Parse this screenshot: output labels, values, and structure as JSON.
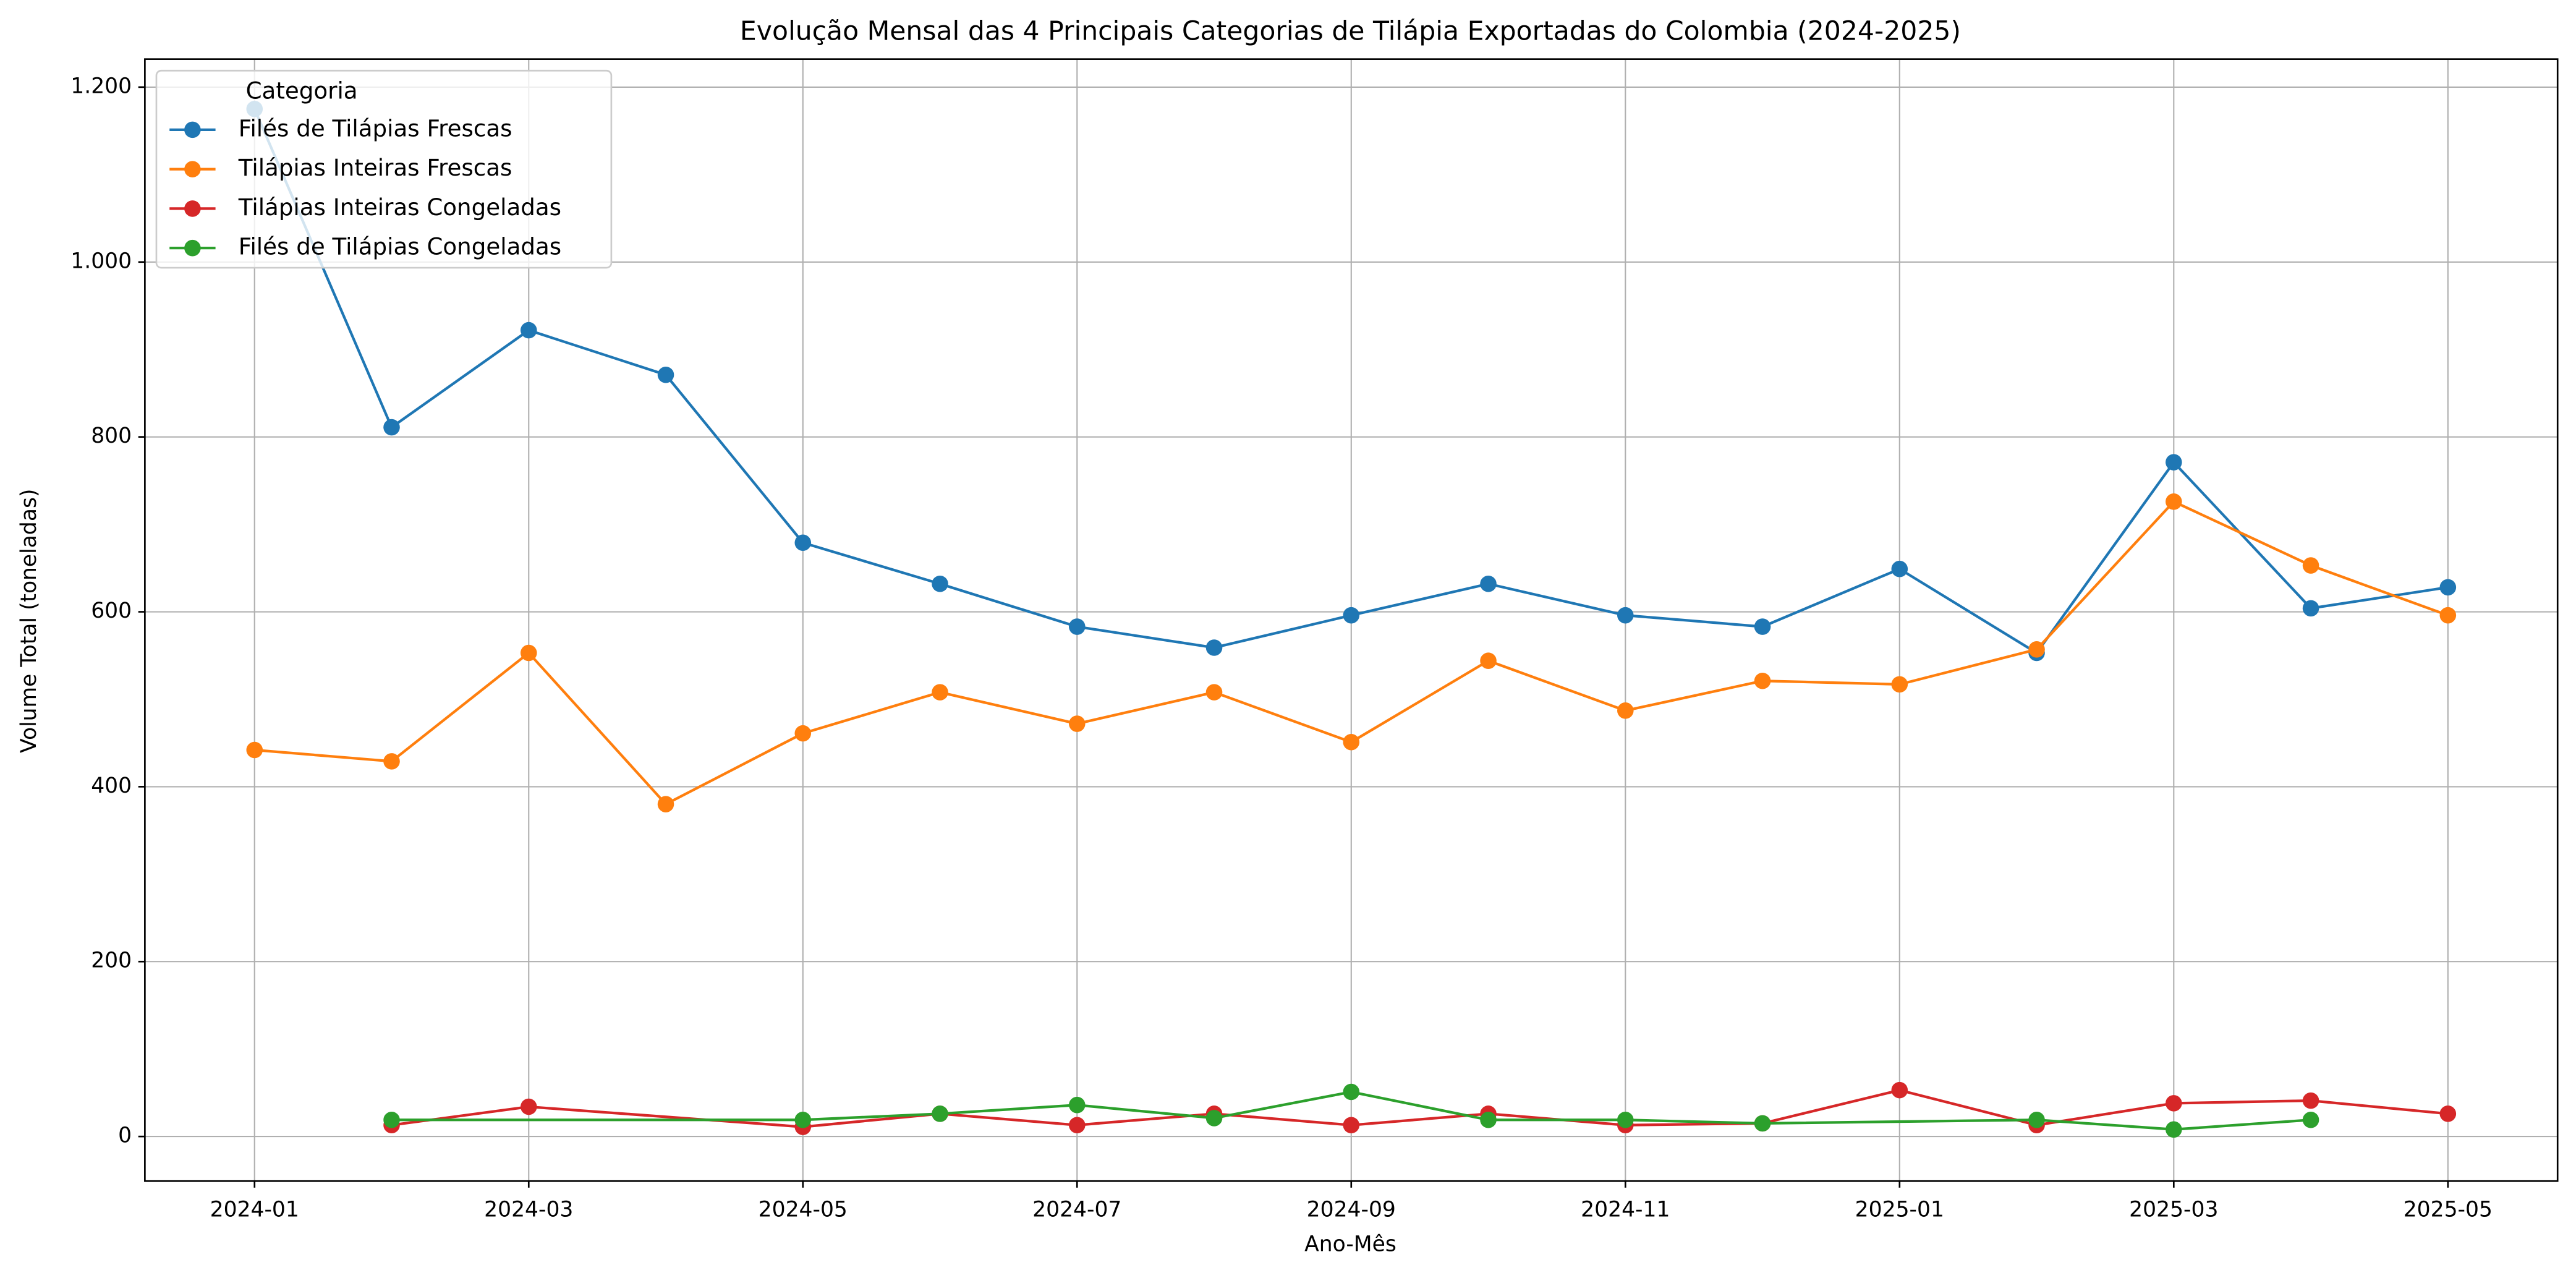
{
  "chart_data": {
    "type": "line",
    "title": "Evolução Mensal das 4 Principais Categorias de Tilápia Exportadas do Colombia (2024-2025)",
    "x_label": "Ano-Mês",
    "y_label": "Volume Total (toneladas)",
    "legend_title": "Categoria",
    "legend": "upper left",
    "grid": true,
    "xticks": [
      "2024-01",
      "2024-03",
      "2024-05",
      "2024-07",
      "2024-09",
      "2024-11",
      "2025-01",
      "2025-03",
      "2025-05"
    ],
    "ylim": [
      -51,
      1232
    ],
    "yticks": [
      0,
      200,
      400,
      600,
      800,
      {
        "value": 1000,
        "label": "1.000"
      },
      {
        "value": 1200,
        "label": "1.200"
      }
    ],
    "series": [
      {
        "name": "Filés de Tilápias Frescas",
        "color": "#1f77b4",
        "x": [
          "2024-01",
          "2024-02",
          "2024-03",
          "2024-04",
          "2024-05",
          "2024-06",
          "2024-07",
          "2024-08",
          "2024-09",
          "2024-10",
          "2024-11",
          "2024-12",
          "2025-01",
          "2025-02",
          "2025-03",
          "2025-04",
          "2025-05"
        ],
        "values": [
          1175,
          811,
          922,
          871,
          679,
          632,
          583,
          559,
          596,
          632,
          596,
          583,
          649,
          553,
          771,
          604,
          628
        ]
      },
      {
        "name": "Tilápias Inteiras Frescas",
        "color": "#ff7f0e",
        "x": [
          "2024-01",
          "2024-02",
          "2024-03",
          "2024-04",
          "2024-05",
          "2024-06",
          "2024-07",
          "2024-08",
          "2024-09",
          "2024-10",
          "2024-11",
          "2024-12",
          "2025-01",
          "2025-02",
          "2025-03",
          "2025-04",
          "2025-05"
        ],
        "values": [
          442,
          429,
          553,
          380,
          461,
          508,
          472,
          508,
          451,
          544,
          487,
          521,
          517,
          557,
          726,
          653,
          596
        ]
      },
      {
        "name": "Tilápias Inteiras Congeladas",
        "color": "#d62728",
        "x": [
          "2024-02",
          "2024-03",
          "2024-05",
          "2024-06",
          "2024-07",
          "2024-08",
          "2024-09",
          "2024-10",
          "2024-11",
          "2024-12",
          "2025-01",
          "2025-02",
          "2025-03",
          "2025-04",
          "2025-05"
        ],
        "values": [
          13,
          34,
          11,
          26,
          13,
          26,
          13,
          26,
          13,
          15,
          53,
          13,
          38,
          41,
          26
        ]
      },
      {
        "name": "Filés de Tilápias Congeladas",
        "color": "#2ca02c",
        "x": [
          "2024-02",
          "2024-05",
          "2024-06",
          "2024-07",
          "2024-08",
          "2024-09",
          "2024-10",
          "2024-11",
          "2024-12",
          "2025-02",
          "2025-03",
          "2025-04"
        ],
        "values": [
          19,
          19,
          26,
          36,
          21,
          51,
          19,
          19,
          15,
          19,
          8,
          19
        ]
      }
    ]
  }
}
